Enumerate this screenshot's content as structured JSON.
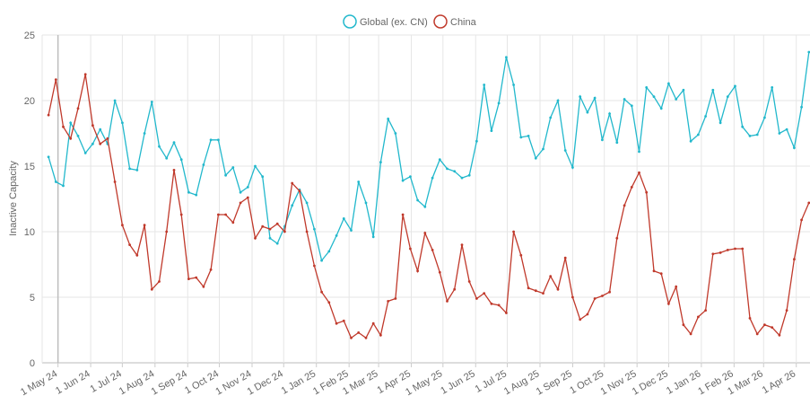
{
  "chart_data": {
    "type": "line",
    "ylabel": "Inactive Capacity",
    "xlabel": "",
    "ylim": [
      0,
      25
    ],
    "xlim": [
      "2024-04-16",
      "2026-04-14"
    ],
    "y_ticks": [
      "0",
      "5",
      "10",
      "15",
      "20",
      "25"
    ],
    "x_tick_labels": [
      "1 May 24",
      "1 Jun 24",
      "1 Jul 24",
      "1 Aug 24",
      "1 Sep 24",
      "1 Oct 24",
      "1 Nov 24",
      "1 Dec 24",
      "1 Jan 25",
      "1 Feb 25",
      "1 Mar 25",
      "1 Apr 25",
      "1 May 25",
      "1 Jun 25",
      "1 Jul 25",
      "1 Aug 25",
      "1 Sep 25",
      "1 Oct 25",
      "1 Nov 25",
      "1 Dec 25",
      "1 Jan 26",
      "1 Feb 26",
      "1 Mar 26",
      "1 Apr 26"
    ],
    "grid": true,
    "legend_position": "top-center",
    "x": [
      "2024-04-22",
      "2024-04-29",
      "2024-05-06",
      "2024-05-13",
      "2024-05-20",
      "2024-05-27",
      "2024-06-03",
      "2024-06-10",
      "2024-06-17",
      "2024-06-24",
      "2024-07-01",
      "2024-07-08",
      "2024-07-15",
      "2024-07-22",
      "2024-07-29",
      "2024-08-05",
      "2024-08-12",
      "2024-08-19",
      "2024-08-26",
      "2024-09-02",
      "2024-09-09",
      "2024-09-16",
      "2024-09-23",
      "2024-09-30",
      "2024-10-07",
      "2024-10-14",
      "2024-10-21",
      "2024-10-28",
      "2024-11-04",
      "2024-11-11",
      "2024-11-18",
      "2024-11-25",
      "2024-12-02",
      "2024-12-09",
      "2024-12-16",
      "2024-12-23",
      "2024-12-30",
      "2025-01-06",
      "2025-01-13",
      "2025-01-20",
      "2025-01-27",
      "2025-02-03",
      "2025-02-10",
      "2025-02-17",
      "2025-02-24",
      "2025-03-03",
      "2025-03-10",
      "2025-03-17",
      "2025-03-24",
      "2025-03-31",
      "2025-04-07",
      "2025-04-14",
      "2025-04-21",
      "2025-04-28",
      "2025-05-05",
      "2025-05-12",
      "2025-05-19",
      "2025-05-26",
      "2025-06-02",
      "2025-06-09",
      "2025-06-16",
      "2025-06-23",
      "2025-06-30",
      "2025-07-07",
      "2025-07-14",
      "2025-07-21",
      "2025-07-28",
      "2025-08-04",
      "2025-08-11",
      "2025-08-18",
      "2025-08-25",
      "2025-09-01",
      "2025-09-08",
      "2025-09-15",
      "2025-09-22",
      "2025-09-29",
      "2025-10-06",
      "2025-10-13",
      "2025-10-20",
      "2025-10-27",
      "2025-11-03",
      "2025-11-10",
      "2025-11-17",
      "2025-11-24",
      "2025-12-01",
      "2025-12-08",
      "2025-12-15",
      "2025-12-22",
      "2025-12-29",
      "2026-01-05",
      "2026-01-12",
      "2026-01-19",
      "2026-01-26",
      "2026-02-02",
      "2026-02-09",
      "2026-02-16",
      "2026-02-23",
      "2026-03-02",
      "2026-03-09",
      "2026-03-16",
      "2026-03-23",
      "2026-03-30",
      "2026-04-06",
      "2026-04-13"
    ],
    "series": [
      {
        "name": "Global (ex. CN)",
        "color": "#22b8cc",
        "values": [
          15.7,
          13.8,
          13.5,
          18.3,
          17.3,
          16.0,
          16.7,
          17.8,
          16.7,
          20.0,
          18.3,
          14.8,
          14.7,
          17.5,
          19.9,
          16.5,
          15.6,
          16.8,
          15.5,
          13.0,
          12.8,
          15.1,
          17.0,
          17.0,
          14.3,
          14.9,
          13.0,
          13.4,
          15.0,
          14.2,
          9.5,
          9.1,
          10.4,
          12.0,
          13.2,
          12.2,
          10.2,
          7.8,
          8.5,
          9.7,
          11.0,
          10.1,
          13.8,
          12.2,
          9.6,
          15.3,
          18.6,
          17.5,
          13.9,
          14.2,
          12.4,
          11.9,
          14.1,
          15.5,
          14.8,
          14.6,
          14.1,
          14.3,
          16.9,
          21.2,
          17.7,
          19.8,
          23.3,
          21.2,
          17.2,
          17.3,
          15.6,
          16.3,
          18.7,
          20.0,
          16.2,
          14.9,
          20.3,
          19.1,
          20.2,
          17.0,
          19.0,
          16.8,
          20.1,
          19.6,
          16.1,
          21.0,
          20.3,
          19.4,
          21.3,
          20.1,
          20.8,
          16.9,
          17.4,
          18.8,
          20.8,
          18.3,
          20.3,
          21.1,
          18.0,
          17.3,
          17.4,
          18.7,
          21.0,
          17.5,
          17.8,
          16.4,
          19.5,
          23.7
        ]
      },
      {
        "name": "China",
        "color": "#c0392b",
        "values": [
          18.9,
          21.6,
          18.0,
          17.1,
          19.4,
          22.0,
          18.1,
          16.7,
          17.1,
          13.8,
          10.5,
          9.0,
          8.2,
          10.5,
          5.6,
          6.2,
          10.0,
          14.7,
          11.3,
          6.4,
          6.5,
          5.8,
          7.1,
          11.3,
          11.3,
          10.7,
          12.2,
          12.6,
          9.5,
          10.4,
          10.2,
          10.6,
          10.0,
          13.7,
          13.1,
          10.0,
          7.4,
          5.4,
          4.6,
          3.0,
          3.2,
          1.9,
          2.3,
          1.9,
          3.0,
          2.1,
          4.7,
          4.9,
          11.3,
          8.7,
          7.0,
          9.9,
          8.6,
          6.9,
          4.7,
          5.6,
          9.0,
          6.2,
          4.9,
          5.3,
          4.5,
          4.4,
          3.8,
          10.0,
          8.2,
          5.7,
          5.5,
          5.3,
          6.6,
          5.6,
          8.0,
          5.0,
          3.3,
          3.7,
          4.9,
          5.1,
          5.4,
          9.5,
          12.0,
          13.4,
          14.5,
          13.0,
          7.0,
          6.8,
          4.5,
          5.8,
          2.9,
          2.2,
          3.5,
          4.0,
          8.3,
          8.4,
          8.6,
          8.7,
          8.7,
          3.4,
          2.2,
          2.9,
          2.7,
          2.1,
          4.0,
          7.9,
          10.9,
          12.2
        ]
      }
    ]
  }
}
